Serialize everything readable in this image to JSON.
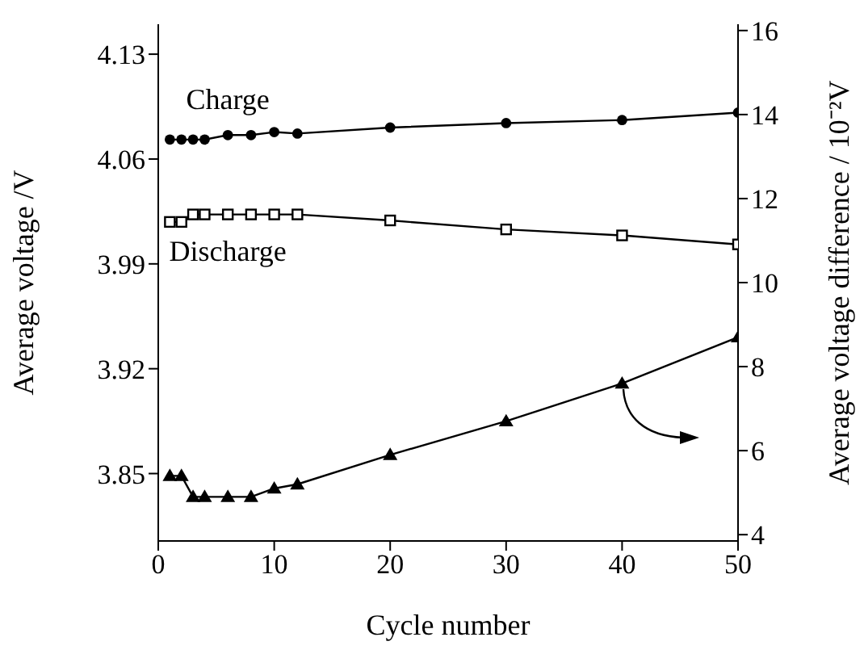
{
  "chart_data": {
    "type": "line",
    "xlabel": "Cycle number",
    "ylabel": "Average voltage /V",
    "y2label": "Average voltage difference / 10⁻²V",
    "x": [
      1,
      2,
      3,
      4,
      6,
      8,
      10,
      12,
      20,
      30,
      40,
      50
    ],
    "series": [
      {
        "name": "Charge",
        "color": "#000000",
        "marker": "circle",
        "values": [
          4.073,
          4.073,
          4.073,
          4.073,
          4.076,
          4.076,
          4.078,
          4.077,
          4.081,
          4.084,
          4.086,
          4.091
        ]
      },
      {
        "name": "Discharge",
        "color": "#000000",
        "marker": "square",
        "values": [
          4.018,
          4.018,
          4.023,
          4.023,
          4.023,
          4.023,
          4.023,
          4.023,
          4.019,
          4.013,
          4.009,
          4.003
        ]
      },
      {
        "color": "#000000",
        "marker": "triangle",
        "axis": "y2",
        "values": [
          5.4,
          5.4,
          4.9,
          4.9,
          4.9,
          4.9,
          5.1,
          5.2,
          5.9,
          6.7,
          7.6,
          8.7
        ]
      }
    ],
    "xlim": [
      0,
      50
    ],
    "xticks": [
      0,
      10,
      20,
      30,
      40,
      50
    ],
    "ylim": [
      3.805,
      4.15
    ],
    "yticks": [
      3.85,
      3.92,
      3.99,
      4.06,
      4.13
    ],
    "y2lim": [
      3.85,
      16.15
    ],
    "y2ticks": [
      4,
      6,
      8,
      10,
      12,
      14,
      16
    ],
    "grid": false,
    "legend": false,
    "line_style": "solid"
  }
}
